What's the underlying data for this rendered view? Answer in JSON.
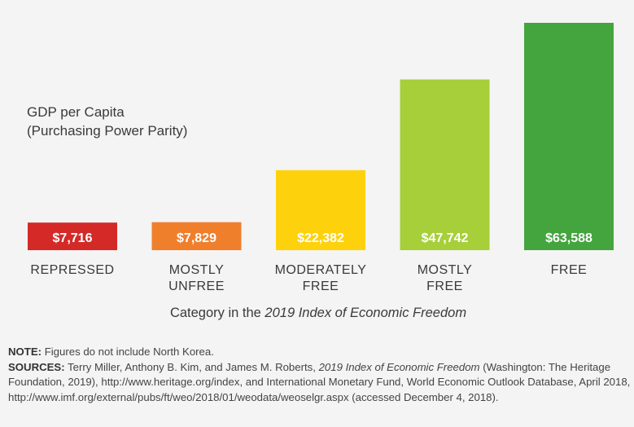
{
  "chart_data": {
    "type": "bar",
    "ylabel_lines": [
      "GDP per Capita",
      "(Purchasing Power Parity)"
    ],
    "xlabel_prefix": "Category in the ",
    "xlabel_italic": "2019 Index of Economic Freedom",
    "categories": [
      {
        "label_lines": [
          "REPRESSED"
        ],
        "value": 7716,
        "value_label": "$7,716",
        "color": "#d42a27"
      },
      {
        "label_lines": [
          "MOSTLY",
          "UNFREE"
        ],
        "value": 7829,
        "value_label": "$7,829",
        "color": "#f07f2c"
      },
      {
        "label_lines": [
          "MODERATELY",
          "FREE"
        ],
        "value": 22382,
        "value_label": "$22,382",
        "color": "#fdd20c"
      },
      {
        "label_lines": [
          "MOSTLY",
          "FREE"
        ],
        "value": 47742,
        "value_label": "$47,742",
        "color": "#a6cf39"
      },
      {
        "label_lines": [
          "FREE"
        ],
        "value": 63588,
        "value_label": "$63,588",
        "color": "#44a53e"
      }
    ],
    "ylim": [
      0,
      63588
    ]
  },
  "notes": {
    "note_label": "NOTE:",
    "note_text": " Figures do not include North Korea.",
    "sources_label": "SOURCES:",
    "sources_text_1": " Terry Miller, Anthony B. Kim, and James M. Roberts, ",
    "sources_italic": "2019 Index of Economic Freedom",
    "sources_text_2": " (Washington: The Heritage Foundation, 2019), http://www.heritage.org/index, and International Monetary Fund, World Economic Outlook Database, April 2018, http://www.imf.org/external/pubs/ft/weo/2018/01/weodata/weoselgr.aspx (accessed December 4, 2018)."
  }
}
